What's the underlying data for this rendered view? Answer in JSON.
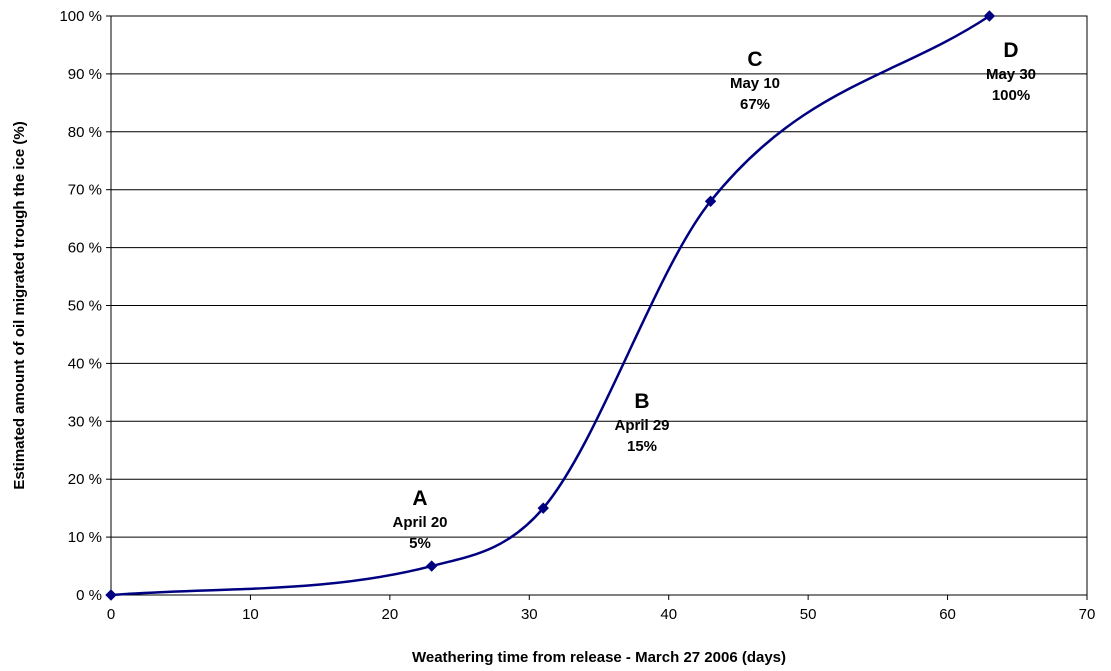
{
  "chart_data": {
    "type": "line",
    "title": "",
    "xlabel": "Weathering time from release - March 27 2006 (days)",
    "ylabel": "Estimated amount of oil migrated trough the ice (%)",
    "xlim": [
      0,
      70
    ],
    "ylim": [
      0,
      100
    ],
    "x_ticks": [
      0,
      10,
      20,
      30,
      40,
      50,
      60,
      70
    ],
    "x_tick_labels": [
      "0",
      "10",
      "20",
      "30",
      "40",
      "50",
      "60",
      "70"
    ],
    "y_ticks": [
      0,
      10,
      20,
      30,
      40,
      50,
      60,
      70,
      80,
      90,
      100
    ],
    "y_tick_labels": [
      "0 %",
      "10 %",
      "20 %",
      "30 %",
      "40 %",
      "50 %",
      "60 %",
      "70 %",
      "80 %",
      "90 %",
      "100 %"
    ],
    "grid": "horizontal",
    "legend": "none",
    "series": [
      {
        "color": "#000080",
        "marker": "diamond",
        "smooth": true,
        "x": [
          0,
          23,
          31,
          43,
          63
        ],
        "y": [
          0,
          5,
          15,
          68,
          100
        ]
      }
    ],
    "annotations": [
      {
        "letter": "A",
        "date": "April 20",
        "value": "5%",
        "x": 23,
        "y": 5
      },
      {
        "letter": "B",
        "date": "April 29",
        "value": "15%",
        "x": 31,
        "y": 15
      },
      {
        "letter": "C",
        "date": "May 10",
        "value": "67%",
        "x": 43,
        "y": 68
      },
      {
        "letter": "D",
        "date": "May 30",
        "value": "100%",
        "x": 63,
        "y": 100
      }
    ]
  }
}
